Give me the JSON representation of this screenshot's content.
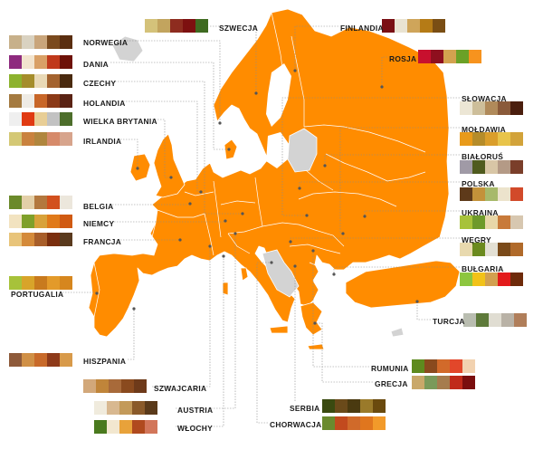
{
  "map": {
    "land_color": "#FF8C00",
    "border_color": "#FFFFFF",
    "excluded_color": "#D3D3D3",
    "line_color": "#7a7a7a"
  },
  "countries": [
    {
      "id": "szwecja",
      "label": "SZWECJA",
      "colors": [
        "#D4C27A",
        "#C2A45E",
        "#8E2C1F",
        "#7D1010",
        "#3F6B21"
      ]
    },
    {
      "id": "finlandia",
      "label": "FINLANDIA",
      "colors": [
        "#7A0F14",
        "#E9E3D2",
        "#CFA55A",
        "#B57B16",
        "#7A4E14"
      ]
    },
    {
      "id": "norwegia",
      "label": "NORWEGIA",
      "colors": [
        "#C7B08A",
        "#D9D2C1",
        "#C9A57B",
        "#7A4A1E",
        "#5A2E10"
      ]
    },
    {
      "id": "rosja",
      "label": "ROSJA",
      "colors": [
        "#C8102E",
        "#8E0F1E",
        "#D3A24F",
        "#6BA127",
        "#F7931E"
      ]
    },
    {
      "id": "dania",
      "label": "DANIA",
      "colors": [
        "#8E2A7E",
        "#F2E4CE",
        "#D9A066",
        "#C0391B",
        "#6E1208"
      ]
    },
    {
      "id": "czechy",
      "label": "CZECHY",
      "colors": [
        "#8DB22E",
        "#A58D2B",
        "#E9D9B6",
        "#A4632F",
        "#4A2A0F"
      ]
    },
    {
      "id": "holandia",
      "label": "HOLANDIA",
      "colors": [
        "#A47A40",
        "#EEEBE5",
        "#C86628",
        "#8B3A17",
        "#5A2314"
      ]
    },
    {
      "id": "wielka_brytania",
      "label": "WIELKA BRYTANIA",
      "colors": [
        "#EFEFEF",
        "#E03A12",
        "#E8CE96",
        "#C2C2C2",
        "#4D6E2B"
      ]
    },
    {
      "id": "irlandia",
      "label": "IRLANDIA",
      "colors": [
        "#D4C875",
        "#C9823E",
        "#B0863E",
        "#D68A6A",
        "#D7A48C"
      ]
    },
    {
      "id": "slowacja",
      "label": "SŁOWACJA",
      "colors": [
        "#ECE6D5",
        "#CDBE9A",
        "#B08A5A",
        "#8A5A3A",
        "#4A1E0E"
      ]
    },
    {
      "id": "moldawia",
      "label": "MOŁDAWIA",
      "colors": [
        "#E89A1A",
        "#B58C2A",
        "#DA9E2B",
        "#E8C44A",
        "#D2A33A"
      ]
    },
    {
      "id": "bialorus",
      "label": "BIAŁORUŚ",
      "colors": [
        "#A09AA6",
        "#4F5B1E",
        "#D8C6A6",
        "#B49A86",
        "#7A3E2A"
      ]
    },
    {
      "id": "belgia",
      "label": "BELGIA",
      "colors": [
        "#6B8A2A",
        "#E3CFA8",
        "#B3783E",
        "#D2501E",
        "#ECE7DC"
      ]
    },
    {
      "id": "niemcy",
      "label": "NIEMCY",
      "colors": [
        "#F2E3C0",
        "#7FA02A",
        "#D8A23A",
        "#E07A1A",
        "#D05A12"
      ]
    },
    {
      "id": "francja",
      "label": "FRANCJA",
      "colors": [
        "#E8C47A",
        "#D48A3A",
        "#A85E2A",
        "#7A2E0E",
        "#5A3A1E"
      ]
    },
    {
      "id": "polska",
      "label": "POLSKA",
      "colors": [
        "#5E3A1A",
        "#C3923A",
        "#A7B96A",
        "#ECE3CC",
        "#D24A2A"
      ]
    },
    {
      "id": "ukraina",
      "label": "UKRAINA",
      "colors": [
        "#A7C23A",
        "#6E9A2A",
        "#E8D7A8",
        "#C87A3A",
        "#D7C7B0"
      ]
    },
    {
      "id": "wegry",
      "label": "WĘGRY",
      "colors": [
        "#E8D9AE",
        "#6B8A1E",
        "#E3E0D4",
        "#7A4A1A",
        "#B06A2A"
      ]
    },
    {
      "id": "bulgaria",
      "label": "BUŁGARIA",
      "colors": [
        "#8DC63F",
        "#F2C218",
        "#D2A050",
        "#E31B1B",
        "#6E2A0A"
      ]
    },
    {
      "id": "portugalia",
      "label": "PORTUGALIA",
      "colors": [
        "#A7C23A",
        "#D8A42A",
        "#C87A1E",
        "#E39A2A",
        "#D6861E"
      ]
    },
    {
      "id": "turcja",
      "label": "TURCJA",
      "colors": [
        "#B9BDB0",
        "#5E7A3A",
        "#E0DDD2",
        "#B9B2A6",
        "#B07E5A"
      ]
    },
    {
      "id": "hiszpania",
      "label": "HISZPANIA",
      "colors": [
        "#8E5A3A",
        "#D09046",
        "#C86A2A",
        "#8E3A1A",
        "#D89A4A"
      ]
    },
    {
      "id": "rumunia",
      "label": "RUMUNIA",
      "colors": [
        "#5E8A1E",
        "#8A4A1E",
        "#D26A2A",
        "#E2472A",
        "#F2D2B0"
      ]
    },
    {
      "id": "szwajcaria",
      "label": "SZWAJCARIA",
      "colors": [
        "#D2A87A",
        "#C0853A",
        "#A86A3A",
        "#8A4A1E",
        "#6E3A1A"
      ]
    },
    {
      "id": "grecja",
      "label": "GRECJA",
      "colors": [
        "#C9A86A",
        "#7A9A5A",
        "#A67C4E",
        "#C02A1A",
        "#7A0E0E"
      ]
    },
    {
      "id": "austria",
      "label": "AUSTRIA",
      "colors": [
        "#F0EBDD",
        "#D8B890",
        "#C39A5A",
        "#8A5A2A",
        "#5A3A1A"
      ]
    },
    {
      "id": "serbia",
      "label": "SERBIA",
      "colors": [
        "#3A4A10",
        "#6A4A1A",
        "#4A3A10",
        "#9A7A2A",
        "#6A4A0E"
      ]
    },
    {
      "id": "wlochy",
      "label": "WŁOCHY",
      "colors": [
        "#4A7A1E",
        "#F2E7CF",
        "#E8A23A",
        "#B04A1E",
        "#D2765A"
      ]
    },
    {
      "id": "chorwacja",
      "label": "CHORWACJA",
      "colors": [
        "#6A8A2E",
        "#C24A1E",
        "#D06A2A",
        "#E0761E",
        "#F29A2A"
      ]
    }
  ]
}
